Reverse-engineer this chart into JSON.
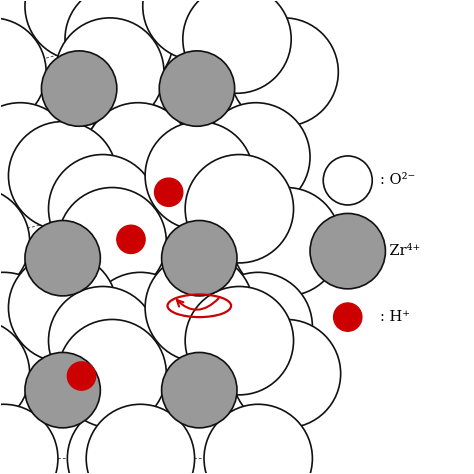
{
  "bg_color": "#ffffff",
  "arrow_color": "#a8c4e0",
  "bond_color": "#555555",
  "o_color": "#ffffff",
  "o_edge": "#111111",
  "zr_color": "#999999",
  "zr_edge": "#111111",
  "h_color": "#cc0000",
  "h_edge": "#cc0000",
  "legend_O_label": ": O²⁻",
  "legend_Zr_label": ": Zr⁴⁺",
  "legend_H_label": ": H⁺",
  "O_r": 0.115,
  "Zr_r": 0.08,
  "H_r": 0.03,
  "figsize": [
    4.74,
    4.74
  ],
  "dpi": 100
}
